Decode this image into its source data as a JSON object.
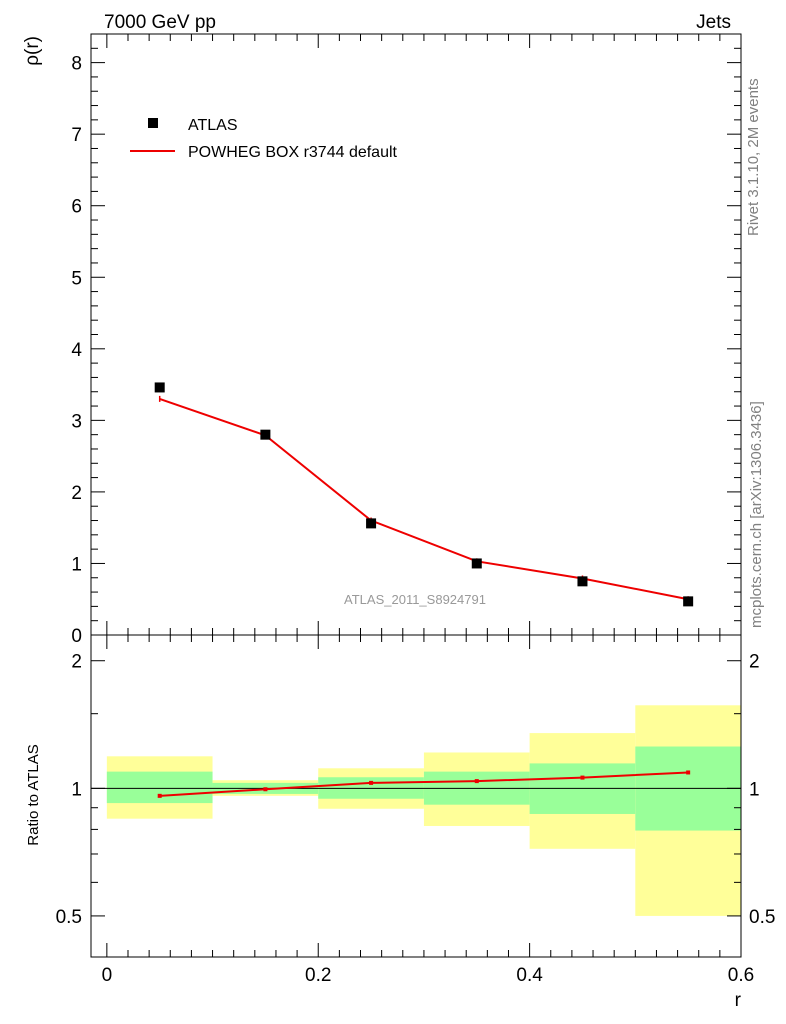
{
  "header": {
    "left": "7000 GeV pp",
    "right": "Jets"
  },
  "side_labels": {
    "rivet": "Rivet 3.1.10,  2M events",
    "mcplots": "mcplots.cern.ch [arXiv:1306.3436]"
  },
  "colors": {
    "data": "#000000",
    "mc": "#ee0000",
    "band_inner": "#99ff99",
    "band_outer": "#ffff99",
    "watermark": "#999999"
  },
  "chart_data": [
    {
      "type": "scatter",
      "panel": "main",
      "title": "",
      "ylabel": "ρ(r)",
      "xlabel": "",
      "ylim": [
        0,
        8.4
      ],
      "xlim": [
        -0.015,
        0.6
      ],
      "yticks": [
        "0",
        "1",
        "2",
        "3",
        "4",
        "5",
        "6",
        "7",
        "8"
      ],
      "watermark": "ATLAS_2011_S8924791",
      "legend_position": "top-left",
      "series": [
        {
          "name": "ATLAS",
          "style": "markers",
          "x": [
            0.05,
            0.15,
            0.25,
            0.35,
            0.45,
            0.55
          ],
          "y": [
            3.46,
            2.8,
            1.56,
            1.0,
            0.75,
            0.47
          ]
        },
        {
          "name": "POWHEG BOX r3744 default",
          "style": "line",
          "x": [
            0.05,
            0.15,
            0.25,
            0.35,
            0.45,
            0.55
          ],
          "y": [
            3.3,
            2.79,
            1.6,
            1.03,
            0.79,
            0.5
          ]
        }
      ]
    },
    {
      "type": "line",
      "panel": "ratio",
      "ylabel": "Ratio to ATLAS",
      "xlabel": "r",
      "ylim": [
        0.4,
        2.3
      ],
      "xlim": [
        -0.015,
        0.6
      ],
      "yticks": [
        "0.5",
        "1",
        "2"
      ],
      "xticks": [
        "0",
        "0.2",
        "0.4",
        "0.6"
      ],
      "bins": [
        [
          0.0,
          0.1
        ],
        [
          0.1,
          0.2
        ],
        [
          0.2,
          0.3
        ],
        [
          0.3,
          0.4
        ],
        [
          0.4,
          0.5
        ],
        [
          0.5,
          0.6
        ]
      ],
      "band_inner": [
        [
          0.923,
          1.095
        ],
        [
          0.97,
          1.03
        ],
        [
          0.945,
          1.062
        ],
        [
          0.915,
          1.095
        ],
        [
          0.87,
          1.145
        ],
        [
          0.795,
          1.255
        ]
      ],
      "band_outer": [
        [
          0.848,
          1.19
        ],
        [
          0.96,
          1.045
        ],
        [
          0.895,
          1.115
        ],
        [
          0.815,
          1.215
        ],
        [
          0.72,
          1.35
        ],
        [
          0.5,
          1.57
        ]
      ],
      "series": [
        {
          "name": "POWHEG BOX r3744 default",
          "x": [
            0.05,
            0.15,
            0.25,
            0.35,
            0.45,
            0.55
          ],
          "y": [
            0.96,
            0.995,
            1.03,
            1.04,
            1.06,
            1.09
          ]
        }
      ]
    }
  ]
}
